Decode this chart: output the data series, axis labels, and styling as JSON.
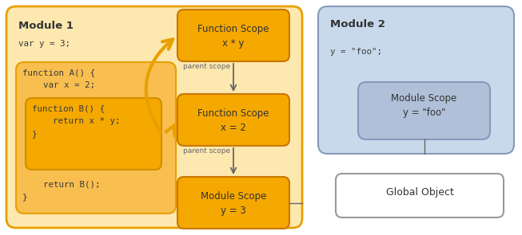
{
  "bg_color": "#ffffff",
  "module1_bg": "#fde8b0",
  "module1_border": "#e8a000",
  "module1_label": "Module 1",
  "scope_box_bg": "#f5a800",
  "scope_box_border": "#c87800",
  "func_scope1_line1": "Function Scope",
  "func_scope1_line2": "x * y",
  "func_scope2_line1": "Function Scope",
  "func_scope2_line2": "x = 2",
  "mod_scope1_line1": "Module Scope",
  "mod_scope1_line2": "y = 3",
  "module2_bg": "#c9d9ec",
  "module2_border": "#8899bb",
  "module2_label": "Module 2",
  "mod_scope2_line1": "Module Scope",
  "mod_scope2_line2": "y = \"foo\"",
  "mod_scope2_bg": "#b0c0d8",
  "global_label": "Global Object",
  "global_bg": "#ffffff",
  "global_border": "#999999",
  "arrow_color": "#e8a000",
  "line_color": "#666666",
  "parent_scope_label": "parent scope",
  "text_dark": "#333333",
  "text_mono": "#3a3a3a",
  "inner_funcA_bg": "#f8be50",
  "inner_funcA_border": "#e8a000",
  "inner_funcB_bg": "#f5a800",
  "inner_funcB_border": "#d09000"
}
